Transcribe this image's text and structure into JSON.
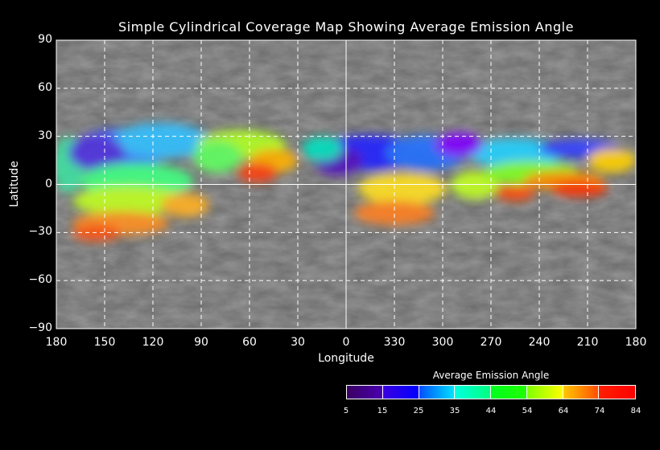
{
  "chart_data": {
    "type": "map",
    "title": "Simple Cylindrical Coverage Map Showing Average Emission Angle",
    "xlabel": "Longitude",
    "ylabel": "Latitude",
    "x_ticks": [
      "180",
      "150",
      "120",
      "90",
      "60",
      "30",
      "0",
      "330",
      "300",
      "270",
      "240",
      "210",
      "180"
    ],
    "y_ticks": [
      "90",
      "60",
      "30",
      "0",
      "−30",
      "−60",
      "−90"
    ],
    "grid": true,
    "colorbar": {
      "title": "Average Emission Angle",
      "ticks": [
        "5",
        "15",
        "25",
        "35",
        "44",
        "54",
        "64",
        "74",
        "84"
      ],
      "range": [
        5,
        84
      ],
      "segments": [
        [
          "#3a0060",
          "#4a00b0"
        ],
        [
          "#3a00e0",
          "#0000ff"
        ],
        [
          "#0050ff",
          "#00e0ff"
        ],
        [
          "#00ffe0",
          "#00ff80"
        ],
        [
          "#00ff20",
          "#20ff00"
        ],
        [
          "#80ff00",
          "#ffff00"
        ],
        [
          "#ffc800",
          "#ff5000"
        ],
        [
          "#ff2000",
          "#ff0000"
        ]
      ]
    }
  }
}
